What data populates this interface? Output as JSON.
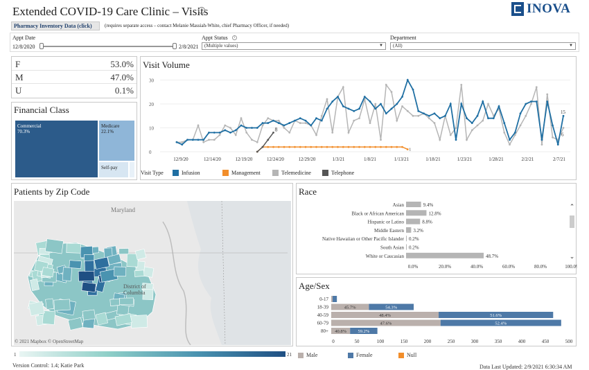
{
  "header": {
    "title": "Extended COVID-19 Care Clinic – Visits",
    "info_icon": "info-icon",
    "logo_text": "INOVA",
    "pharmacy_link": "Pharmacy Inventory Data (click)",
    "pharmacy_note": "(requires separate access – contact Melanie Massiah-White, chief Pharmacy Officer, if needed)"
  },
  "filters": {
    "appt_date_label": "Appt Date",
    "date_start": "12/8/2020",
    "date_end": "2/8/2021",
    "appt_status_label": "Appt Status",
    "appt_status_value": "(Multiple values)",
    "department_label": "Department",
    "department_value": "(All)"
  },
  "sex_summary": [
    {
      "label": "F",
      "value": "53.0%"
    },
    {
      "label": "M",
      "value": "47.0%"
    },
    {
      "label": "U",
      "value": "0.1%"
    }
  ],
  "financial": {
    "title": "Financial Class",
    "commercial": "Commercial",
    "commercial_pct": "70.3%",
    "medicare": "Medicare",
    "medicare_pct": "22.1%",
    "selfpay": "Self-pay",
    "colors": {
      "commercial": "#2c5b8a",
      "medicare": "#8fb6d8",
      "selfpay": "#d7e6f2"
    }
  },
  "visit_volume": {
    "title": "Visit Volume",
    "legend_title": "Visit Type",
    "annot_8": "8",
    "annot_1": "1",
    "annot_15": "15",
    "annot_6": "6"
  },
  "zip": {
    "title": "Patients by Zip Code",
    "map_label_maryland": "Maryland",
    "map_label_dc_1": "District of",
    "map_label_dc_2": "Columbia",
    "attribution": "© 2021 Mapbox  © OpenStreetMap",
    "scale_min": "1",
    "scale_max": "21"
  },
  "race": {
    "title": "Race",
    "rows": [
      {
        "label": "Asian",
        "value": 9.4,
        "text": "9.4%"
      },
      {
        "label": "Black or African American",
        "value": 12.8,
        "text": "12.8%"
      },
      {
        "label": "Hispanic or Latino",
        "value": 8.8,
        "text": "8.8%"
      },
      {
        "label": "Middle Eastern",
        "value": 3.2,
        "text": "3.2%"
      },
      {
        "label": "Native Hawaiian or Other Pacific Islander",
        "value": 0.2,
        "text": "0.2%"
      },
      {
        "label": "South Asian",
        "value": 0.2,
        "text": "0.2%"
      },
      {
        "label": "White or Caucasian",
        "value": 48.7,
        "text": "48.7%"
      }
    ],
    "ticks": [
      "0.0%",
      "20.0%",
      "40.0%",
      "60.0%",
      "80.0%",
      "100.0%"
    ]
  },
  "agesex": {
    "title": "Age/Sex",
    "rows": [
      {
        "label": "0-17",
        "male": 3,
        "female": 9,
        "male_text": "",
        "female_text": ""
      },
      {
        "label": "18-39",
        "male": 80,
        "female": 95,
        "male_text": "45.7%",
        "female_text": "54.3%"
      },
      {
        "label": "40-59",
        "male": 228,
        "female": 243,
        "male_text": "48.4%",
        "female_text": "51.6%"
      },
      {
        "label": "60-79",
        "male": 232,
        "female": 256,
        "male_text": "47.6%",
        "female_text": "52.4%"
      },
      {
        "label": "80+",
        "male": 40,
        "female": 58,
        "male_text": "40.8%",
        "female_text": "59.2%"
      }
    ],
    "ticks": [
      "0",
      "50",
      "100",
      "150",
      "200",
      "250",
      "300",
      "350",
      "400",
      "450",
      "500"
    ]
  },
  "footer": {
    "legend_male": "Male",
    "legend_female": "Female",
    "legend_null": "Null",
    "version": "Version Control: 1.4; Katie Park",
    "updated": "Data Last Updated: 2/9/2021 6:30:34 AM"
  },
  "colors": {
    "infusion": "#1f6fa3",
    "management": "#f28e2b",
    "telemedicine": "#b5b5b5",
    "telephone": "#555555",
    "male": "#bab0ac",
    "female": "#4e79a7",
    "null": "#f28e2b"
  },
  "chart_data": [
    {
      "type": "line",
      "title": "Visit Volume",
      "x_ticks": [
        "12/9/20",
        "12/14/20",
        "12/19/20",
        "12/24/20",
        "12/29/20",
        "1/3/21",
        "1/8/21",
        "1/13/21",
        "1/18/21",
        "1/23/21",
        "1/28/21",
        "2/2/21",
        "2/7/21"
      ],
      "y_ticks": [
        "0",
        "10",
        "20",
        "30"
      ],
      "ylim": [
        0,
        31
      ],
      "legend": [
        "Infusion",
        "Management",
        "Telemedicine",
        "Telephone"
      ],
      "series": [
        {
          "name": "Infusion",
          "color": "#1f6fa3",
          "values": [
            4,
            3,
            5,
            5,
            5,
            5,
            8,
            8,
            8,
            9,
            8,
            9,
            11,
            10,
            10,
            10,
            12,
            12,
            13,
            12,
            11,
            12,
            13,
            14,
            13,
            11,
            14,
            13,
            18,
            21,
            23,
            19,
            18,
            17,
            18,
            23,
            21,
            18,
            20,
            16,
            18,
            20,
            23,
            30,
            26,
            17,
            16,
            15,
            16,
            14,
            15,
            20,
            5,
            20,
            14,
            12,
            15,
            21,
            14,
            14,
            19,
            12,
            5,
            8,
            16,
            20,
            21,
            21,
            5,
            21,
            11,
            3,
            15
          ]
        },
        {
          "name": "Telemedicine",
          "color": "#b5b5b5",
          "values": [
            4,
            4,
            5,
            5,
            11,
            4,
            5,
            5,
            7,
            11,
            10,
            7,
            14,
            8,
            5,
            4,
            11,
            14,
            13,
            13,
            10,
            8,
            13,
            12,
            12,
            11,
            7,
            15,
            22,
            8,
            23,
            27,
            8,
            13,
            14,
            22,
            12,
            20,
            5,
            28,
            25,
            13,
            19,
            17,
            15,
            15,
            16,
            14,
            12,
            5,
            15,
            7,
            10,
            28,
            5,
            9,
            11,
            13,
            20,
            15,
            18,
            8,
            3,
            7,
            11,
            15,
            20,
            27,
            3,
            24,
            6,
            5,
            10
          ]
        },
        {
          "name": "Management",
          "color": "#f28e2b",
          "values": [
            null,
            null,
            null,
            null,
            null,
            null,
            null,
            null,
            null,
            null,
            null,
            null,
            null,
            null,
            null,
            0,
            2,
            2,
            2,
            2,
            2,
            2,
            2,
            2,
            2,
            2,
            2,
            2,
            2,
            2,
            2,
            2,
            2,
            2,
            2,
            2,
            2,
            2,
            2,
            2,
            2,
            2,
            2,
            1
          ]
        },
        {
          "name": "Telephone",
          "color": "#555555",
          "values": [
            null,
            null,
            null,
            null,
            null,
            null,
            null,
            null,
            null,
            null,
            null,
            null,
            null,
            null,
            null,
            0,
            2,
            5,
            8
          ]
        }
      ],
      "annotations": [
        "8",
        "1",
        "15",
        "6"
      ]
    },
    {
      "type": "bar",
      "title": "Race",
      "categories": [
        "Asian",
        "Black or African American",
        "Hispanic or Latino",
        "Middle Eastern",
        "Native Hawaiian or Other Pacific Islander",
        "South Asian",
        "White or Caucasian"
      ],
      "values": [
        9.4,
        12.8,
        8.8,
        3.2,
        0.2,
        0.2,
        48.7
      ],
      "xlim": [
        0,
        100
      ]
    },
    {
      "type": "bar",
      "title": "Age/Sex",
      "categories": [
        "0-17",
        "18-39",
        "40-59",
        "60-79",
        "80+"
      ],
      "series": [
        {
          "name": "Male",
          "values": [
            3,
            80,
            228,
            232,
            40
          ]
        },
        {
          "name": "Female",
          "values": [
            9,
            95,
            243,
            256,
            58
          ]
        }
      ],
      "xlim": [
        0,
        500
      ]
    },
    {
      "type": "bar",
      "title": "Financial Class",
      "categories": [
        "Commercial",
        "Medicare",
        "Self-pay"
      ],
      "values": [
        70.3,
        22.1,
        7.6
      ]
    }
  ]
}
